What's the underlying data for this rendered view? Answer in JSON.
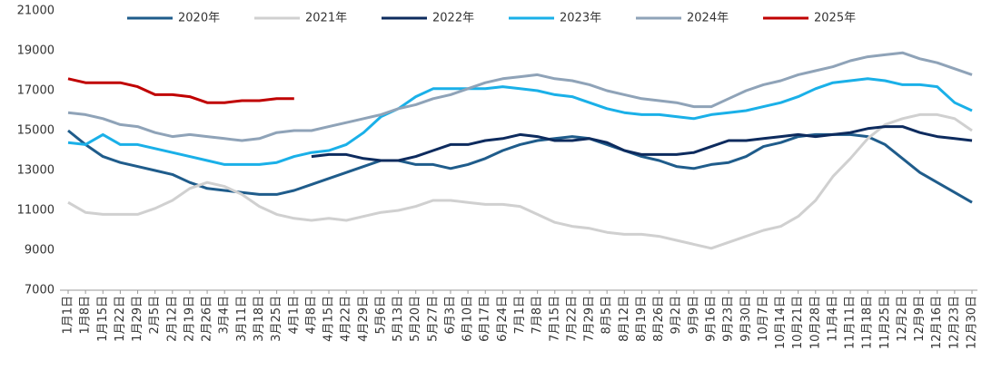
{
  "chart_data": {
    "type": "line",
    "categories": [
      "1月1日",
      "1月8日",
      "1月15日",
      "1月22日",
      "1月29日",
      "2月5日",
      "2月12日",
      "2月19日",
      "2月26日",
      "3月4日",
      "3月11日",
      "3月18日",
      "3月25日",
      "4月1日",
      "4月8日",
      "4月15日",
      "4月22日",
      "4月29日",
      "5月6日",
      "5月13日",
      "5月20日",
      "5月27日",
      "6月3日",
      "6月10日",
      "6月17日",
      "6月24日",
      "7月1日",
      "7月8日",
      "7月15日",
      "7月22日",
      "7月29日",
      "8月5日",
      "8月12日",
      "8月19日",
      "8月26日",
      "9月2日",
      "9月9日",
      "9月16日",
      "9月23日",
      "9月30日",
      "10月7日",
      "10月14日",
      "10月21日",
      "10月28日",
      "11月4日",
      "11月11日",
      "11月18日",
      "11月25日",
      "12月2日",
      "12月9日",
      "12月16日",
      "12月23日",
      "12月30日"
    ],
    "ylim": [
      7000,
      21000
    ],
    "yticks": [
      7000,
      9000,
      11000,
      13000,
      15000,
      17000,
      19000,
      21000
    ],
    "grid": false,
    "legend": "top",
    "series": [
      {
        "name": "2020年",
        "color": "#1f5c8b",
        "values": [
          15000,
          14300,
          13700,
          13400,
          13200,
          13000,
          12800,
          12400,
          12100,
          12000,
          11900,
          11800,
          11800,
          12000,
          12300,
          12600,
          12900,
          13200,
          13500,
          13500,
          13300,
          13300,
          13100,
          13300,
          13600,
          14000,
          14300,
          14500,
          14600,
          14700,
          14600,
          14300,
          14000,
          13700,
          13500,
          13200,
          13100,
          13300,
          13400,
          13700,
          14200,
          14400,
          14700,
          14800,
          14800,
          14800,
          14700,
          14300,
          13600,
          12900,
          12400,
          11900,
          11400
        ]
      },
      {
        "name": "2021年",
        "color": "#d0d0d0",
        "values": [
          11400,
          10900,
          10800,
          10800,
          10800,
          11100,
          11500,
          12100,
          12400,
          12200,
          11800,
          11200,
          10800,
          10600,
          10500,
          10600,
          10500,
          10700,
          10900,
          11000,
          11200,
          11500,
          11500,
          11400,
          11300,
          11300,
          11200,
          10800,
          10400,
          10200,
          10100,
          9900,
          9800,
          9800,
          9700,
          9500,
          9300,
          9100,
          9400,
          9700,
          10000,
          10200,
          10700,
          11500,
          12700,
          13600,
          14600,
          15300,
          15600,
          15800,
          15800,
          15600,
          15000
        ]
      },
      {
        "name": "2022年",
        "color": "#0d2b5e",
        "values": [
          null,
          null,
          null,
          null,
          null,
          null,
          null,
          null,
          null,
          null,
          null,
          null,
          null,
          null,
          13700,
          13800,
          13800,
          13600,
          13500,
          13500,
          13700,
          14000,
          14300,
          14300,
          14500,
          14600,
          14800,
          14700,
          14500,
          14500,
          14600,
          14400,
          14000,
          13800,
          13800,
          13800,
          13900,
          14200,
          14500,
          14500,
          14600,
          14700,
          14800,
          14700,
          14800,
          14900,
          15100,
          15200,
          15200,
          14900,
          14700,
          14600,
          14500
        ]
      },
      {
        "name": "2023年",
        "color": "#1ab0e8",
        "values": [
          14400,
          14300,
          14800,
          14300,
          14300,
          14100,
          13900,
          13700,
          13500,
          13300,
          13300,
          13300,
          13400,
          13700,
          13900,
          14000,
          14300,
          14900,
          15700,
          16100,
          16700,
          17100,
          17100,
          17100,
          17100,
          17200,
          17100,
          17000,
          16800,
          16700,
          16400,
          16100,
          15900,
          15800,
          15800,
          15700,
          15600,
          15800,
          15900,
          16000,
          16200,
          16400,
          16700,
          17100,
          17400,
          17500,
          17600,
          17500,
          17300,
          17300,
          17200,
          16400,
          16000
        ]
      },
      {
        "name": "2024年",
        "color": "#8fa3b8",
        "values": [
          15900,
          15800,
          15600,
          15300,
          15200,
          14900,
          14700,
          14800,
          14700,
          14600,
          14500,
          14600,
          14900,
          15000,
          15000,
          15200,
          15400,
          15600,
          15800,
          16100,
          16300,
          16600,
          16800,
          17100,
          17400,
          17600,
          17700,
          17800,
          17600,
          17500,
          17300,
          17000,
          16800,
          16600,
          16500,
          16400,
          16200,
          16200,
          16600,
          17000,
          17300,
          17500,
          17800,
          18000,
          18200,
          18500,
          18700,
          18800,
          18900,
          18600,
          18400,
          18100,
          17800
        ]
      },
      {
        "name": "2025年",
        "color": "#c00000",
        "values": [
          17600,
          17400,
          17400,
          17400,
          17200,
          16800,
          16800,
          16700,
          16400,
          16400,
          16500,
          16500,
          16600,
          16600,
          null,
          null,
          null,
          null,
          null,
          null,
          null,
          null,
          null,
          null,
          null,
          null,
          null,
          null,
          null,
          null,
          null,
          null,
          null,
          null,
          null,
          null,
          null,
          null,
          null,
          null,
          null,
          null,
          null,
          null,
          null,
          null,
          null,
          null,
          null,
          null,
          null,
          null,
          null
        ]
      }
    ]
  }
}
